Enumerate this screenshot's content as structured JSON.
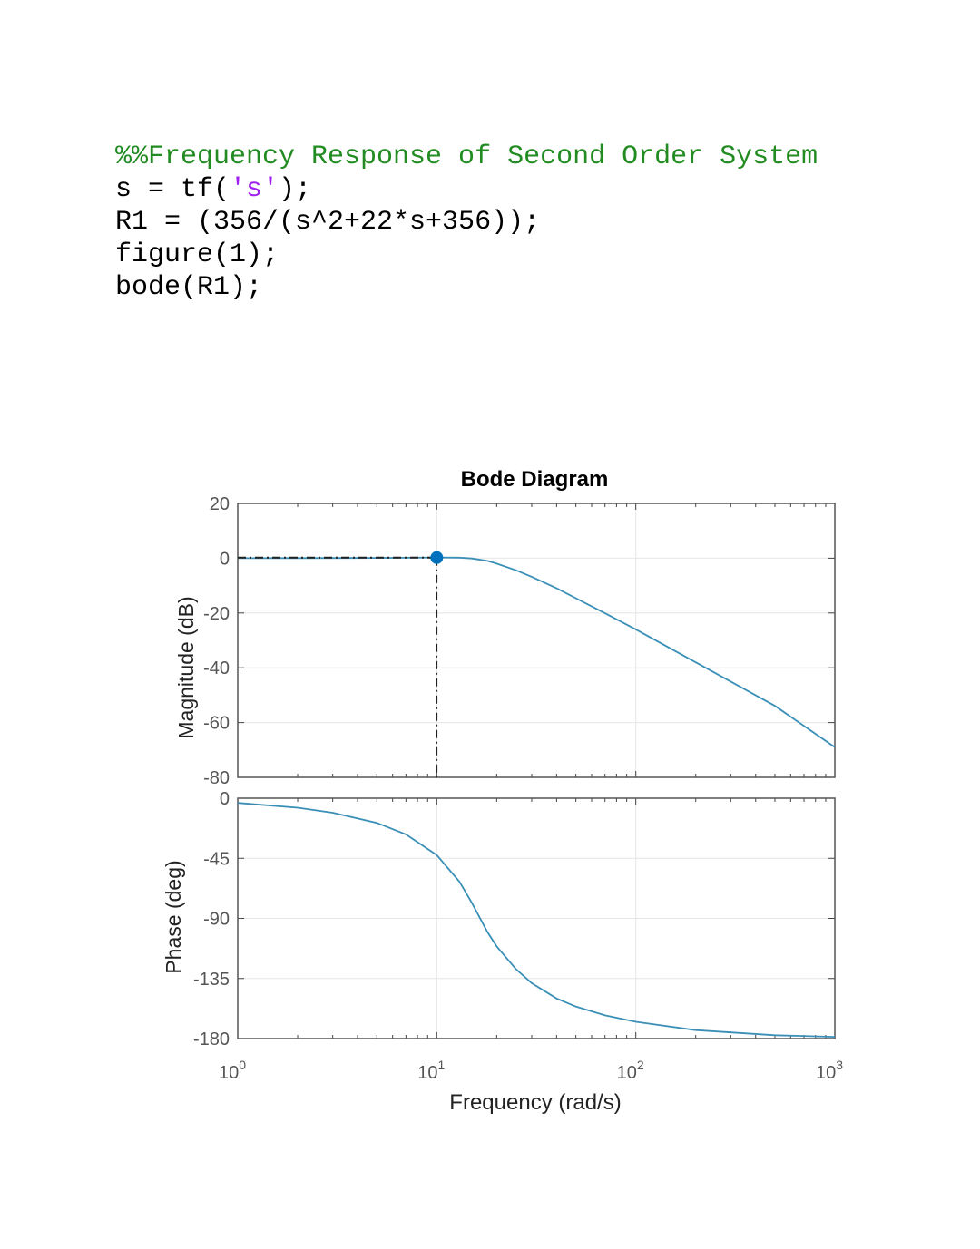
{
  "code": {
    "comment": "%%Frequency Response of Second Order System",
    "line2_prefix": "s = tf(",
    "line2_string": "'s'",
    "line2_suffix": ");",
    "line3": "R1 = (356/(s^2+22*s+356));",
    "line4": "figure(1);",
    "line5": "bode(R1);"
  },
  "chart_data": {
    "type": "line",
    "title": "Bode Diagram",
    "xlabel": "Frequency  (rad/s)",
    "xscale": "log",
    "xlim": [
      1,
      1000
    ],
    "x_ticks": [
      {
        "base": "10",
        "exp": "0"
      },
      {
        "base": "10",
        "exp": "1"
      },
      {
        "base": "10",
        "exp": "2"
      },
      {
        "base": "10",
        "exp": "3"
      }
    ],
    "line_color": "#3a8fb7",
    "magnitude": {
      "ylabel": "Magnitude (dB)",
      "ylim": [
        -80,
        20
      ],
      "y_ticks": [
        "20",
        "0",
        "-20",
        "-40",
        "-60",
        "-80"
      ],
      "y_tick_values": [
        20,
        0,
        -20,
        -40,
        -60,
        -80
      ],
      "marker": {
        "x": 10,
        "y": 0.2,
        "color": "#0072bd"
      },
      "points": [
        [
          1,
          0.0
        ],
        [
          2,
          0.02
        ],
        [
          5,
          0.1
        ],
        [
          10,
          0.25
        ],
        [
          13,
          0.2
        ],
        [
          15,
          -0.1
        ],
        [
          18,
          -1.0
        ],
        [
          20,
          -2.0
        ],
        [
          25,
          -4.4
        ],
        [
          30,
          -6.8
        ],
        [
          40,
          -11.0
        ],
        [
          50,
          -14.6
        ],
        [
          70,
          -20.1
        ],
        [
          100,
          -26.0
        ],
        [
          200,
          -38.0
        ],
        [
          500,
          -53.9
        ],
        [
          1000,
          -69.0
        ]
      ]
    },
    "phase": {
      "ylabel": "Phase (deg)",
      "ylim": [
        -180,
        0
      ],
      "y_ticks": [
        "0",
        "-45",
        "-90",
        "-135",
        "-180"
      ],
      "y_tick_values": [
        0,
        -45,
        -90,
        -135,
        -180
      ],
      "points": [
        [
          1,
          -3.5
        ],
        [
          2,
          -7.1
        ],
        [
          3,
          -10.9
        ],
        [
          5,
          -18.5
        ],
        [
          7,
          -27.1
        ],
        [
          10,
          -42.6
        ],
        [
          13,
          -62.5
        ],
        [
          15,
          -78.4
        ],
        [
          18,
          -100.4
        ],
        [
          20,
          -111.0
        ],
        [
          25,
          -128.0
        ],
        [
          30,
          -138.5
        ],
        [
          40,
          -150.0
        ],
        [
          50,
          -156.0
        ],
        [
          70,
          -162.6
        ],
        [
          100,
          -167.4
        ],
        [
          200,
          -173.7
        ],
        [
          500,
          -177.5
        ],
        [
          1000,
          -178.7
        ]
      ]
    }
  }
}
